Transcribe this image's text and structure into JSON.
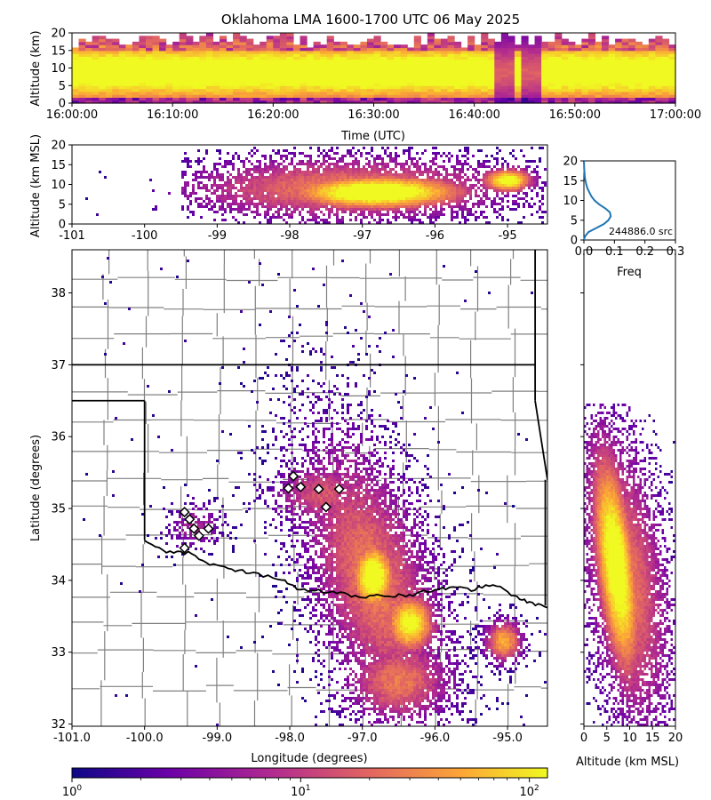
{
  "title": "Oklahoma LMA 1600-1700 UTC 06 May 2025",
  "colors": {
    "colormap": [
      "#0d0887",
      "#6a00a8",
      "#b12a90",
      "#e16462",
      "#fca636",
      "#f0f921"
    ],
    "line_hist": "#1f77b4",
    "border": "#000000",
    "county": "#808080"
  },
  "chart_data": [
    {
      "id": "time-height",
      "type": "heatmap",
      "xlabel": "Time (UTC)",
      "ylabel": "Altitude (km)",
      "xticks": [
        "16:00:00",
        "16:10:00",
        "16:20:00",
        "16:30:00",
        "16:40:00",
        "16:50:00",
        "17:00:00"
      ],
      "xlim": [
        "16:00:00",
        "17:00:00"
      ],
      "yticks": [
        0,
        5,
        10,
        15,
        20
      ],
      "ylim": [
        0,
        20
      ],
      "peak_altitude_km": 9
    },
    {
      "id": "lon-height",
      "type": "heatmap",
      "xlabel": "",
      "ylabel": "Altitude (km MSL)",
      "xticks": [
        -101,
        -100,
        -99,
        -98,
        -97,
        -96,
        -95
      ],
      "xlim": [
        -101,
        -94.45
      ],
      "yticks": [
        0,
        5,
        10,
        15,
        20
      ],
      "ylim": [
        0,
        20
      ],
      "cores": [
        {
          "lon": -96.8,
          "alt": 8
        },
        {
          "lon": -95.0,
          "alt": 11
        }
      ]
    },
    {
      "id": "altitude-histogram",
      "type": "line",
      "xlabel": "Freq",
      "ylabel": "",
      "xticks": [
        0.0,
        0.1,
        0.2,
        0.3
      ],
      "xlim": [
        0,
        0.3
      ],
      "yticks": [
        0,
        5,
        10,
        15,
        20
      ],
      "ylim": [
        0,
        20
      ],
      "annotation": "244886.0 src",
      "series": [
        {
          "x": [
            0.0,
            0.004,
            0.015,
            0.04,
            0.065,
            0.08,
            0.088,
            0.085,
            0.07,
            0.05,
            0.035,
            0.025,
            0.018,
            0.012,
            0.008,
            0.005,
            0.003,
            0.002,
            0.001,
            0.0005,
            0.0
          ],
          "y": [
            0,
            1,
            2,
            3,
            4,
            5,
            6,
            7,
            8,
            9,
            10,
            11,
            12,
            13,
            14,
            15,
            16,
            17,
            18,
            19,
            20
          ]
        }
      ]
    },
    {
      "id": "plan-view",
      "type": "heatmap",
      "xlabel": "Longitude (degrees)",
      "ylabel": "Latitude (degrees)",
      "xticks": [
        "-101.0",
        "-100.0",
        "-99.0",
        "-98.0",
        "-97.0",
        "-96.0",
        "-95.0"
      ],
      "xlim": [
        -101,
        -94.45
      ],
      "yticks": [
        32,
        33,
        34,
        35,
        36,
        37,
        38
      ],
      "ylim": [
        31.97,
        38.6
      ],
      "stations": [
        {
          "lon": -99.45,
          "lat": 34.95
        },
        {
          "lon": -99.38,
          "lat": 34.85
        },
        {
          "lon": -99.32,
          "lat": 34.72
        },
        {
          "lon": -99.25,
          "lat": 34.62
        },
        {
          "lon": -99.45,
          "lat": 34.45
        },
        {
          "lon": -99.12,
          "lat": 34.72
        },
        {
          "lon": -98.02,
          "lat": 35.28
        },
        {
          "lon": -97.85,
          "lat": 35.3
        },
        {
          "lon": -97.95,
          "lat": 35.45
        },
        {
          "lon": -97.6,
          "lat": 35.27
        },
        {
          "lon": -97.32,
          "lat": 35.27
        },
        {
          "lon": -97.5,
          "lat": 35.02
        }
      ]
    },
    {
      "id": "height-lat",
      "type": "heatmap",
      "xlabel": "Altitude (km MSL)",
      "ylabel": "",
      "xticks": [
        0,
        5,
        10,
        15,
        20
      ],
      "xlim": [
        0,
        20
      ],
      "yticks": [],
      "ylim": [
        31.97,
        38.6
      ]
    },
    {
      "id": "colorbar",
      "type": "heatmap",
      "scale": "log",
      "range": [
        1,
        120
      ],
      "ticks": [
        "10^0",
        "10^1",
        "10^2"
      ]
    }
  ]
}
